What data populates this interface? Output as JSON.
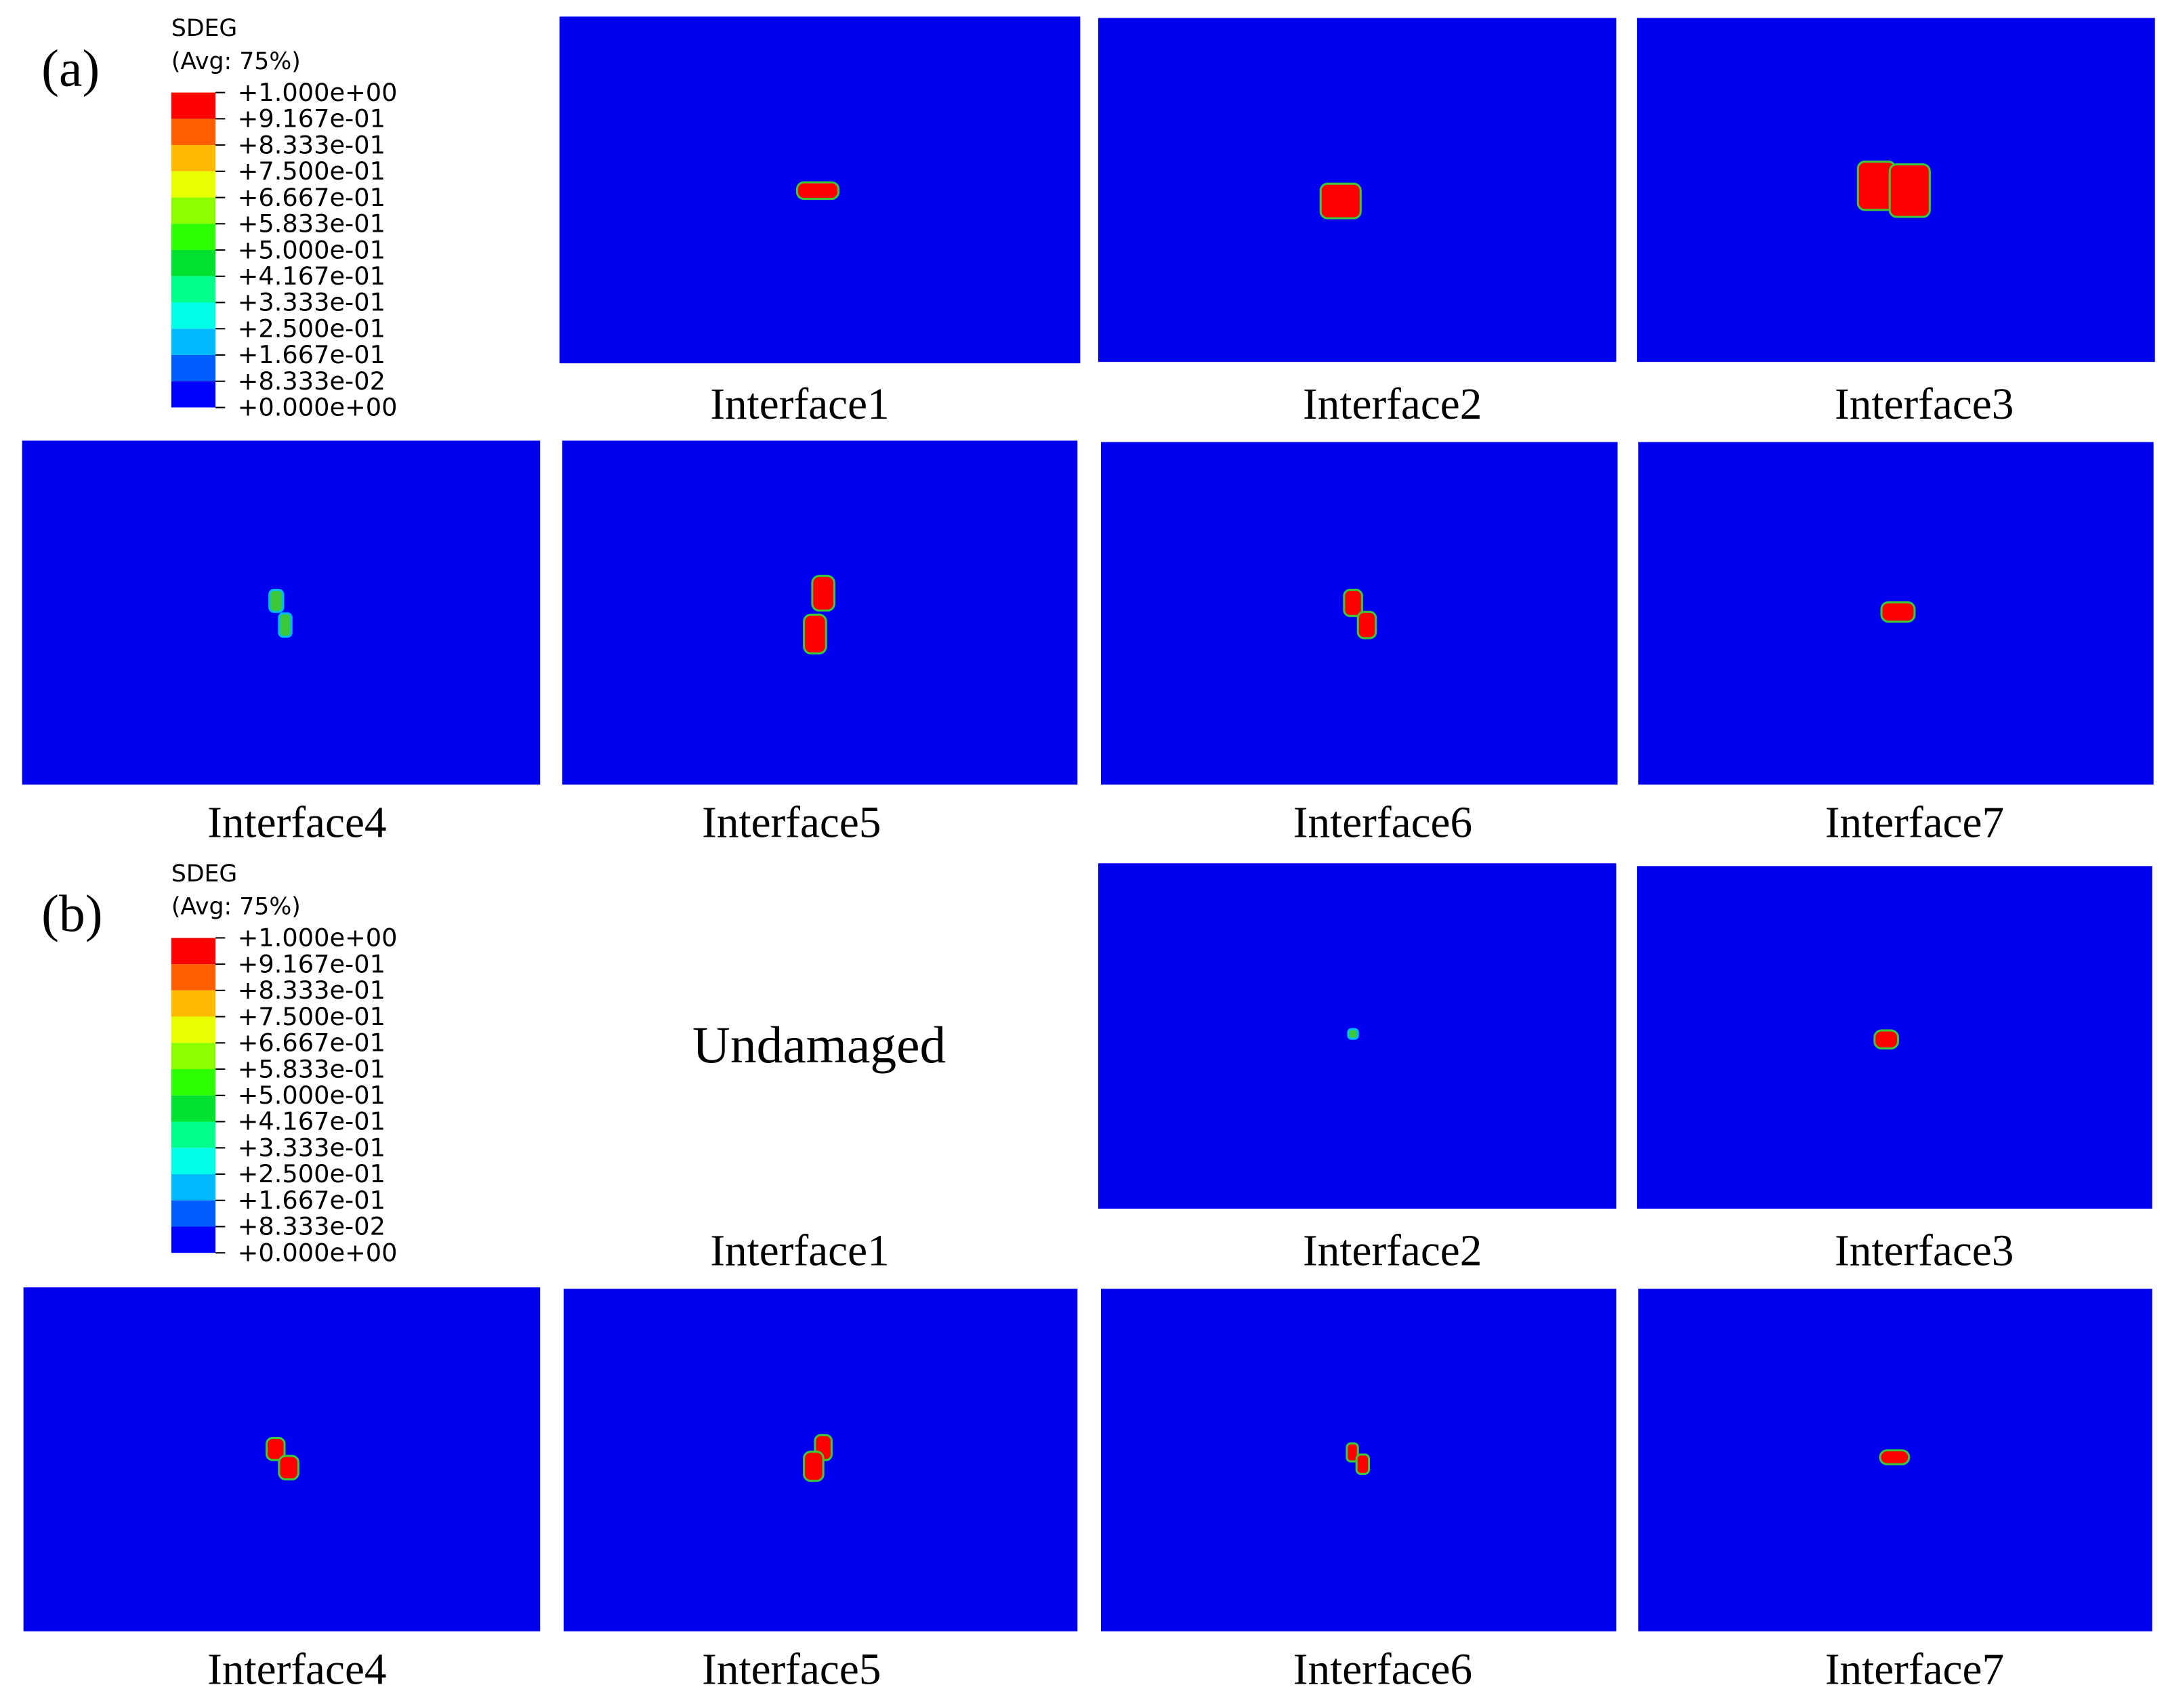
{
  "panels": [
    {
      "label": "(a)",
      "legend": {
        "title": "SDEG",
        "subtitle": "(Avg: 75%)",
        "ticks": [
          "+1.000e+00",
          "+9.167e-01",
          "+8.333e-01",
          "+7.500e-01",
          "+6.667e-01",
          "+5.833e-01",
          "+5.000e-01",
          "+4.167e-01",
          "+3.333e-01",
          "+2.500e-01",
          "+1.667e-01",
          "+8.333e-02",
          "+0.000e+00"
        ]
      },
      "plots": [
        {
          "caption": "Interface1"
        },
        {
          "caption": "Interface2"
        },
        {
          "caption": "Interface3"
        },
        {
          "caption": "Interface4"
        },
        {
          "caption": "Interface5"
        },
        {
          "caption": "Interface6"
        },
        {
          "caption": "Interface7"
        }
      ]
    },
    {
      "label": "(b)",
      "legend": {
        "title": "SDEG",
        "subtitle": "(Avg: 75%)",
        "ticks": [
          "+1.000e+00",
          "+9.167e-01",
          "+8.333e-01",
          "+7.500e-01",
          "+6.667e-01",
          "+5.833e-01",
          "+5.000e-01",
          "+4.167e-01",
          "+3.333e-01",
          "+2.500e-01",
          "+1.667e-01",
          "+8.333e-02",
          "+0.000e+00"
        ]
      },
      "plots": [
        {
          "caption": "Interface1",
          "note": "Undamaged"
        },
        {
          "caption": "Interface2"
        },
        {
          "caption": "Interface3"
        },
        {
          "caption": "Interface4"
        },
        {
          "caption": "Interface5"
        },
        {
          "caption": "Interface6"
        },
        {
          "caption": "Interface7"
        }
      ]
    }
  ]
}
